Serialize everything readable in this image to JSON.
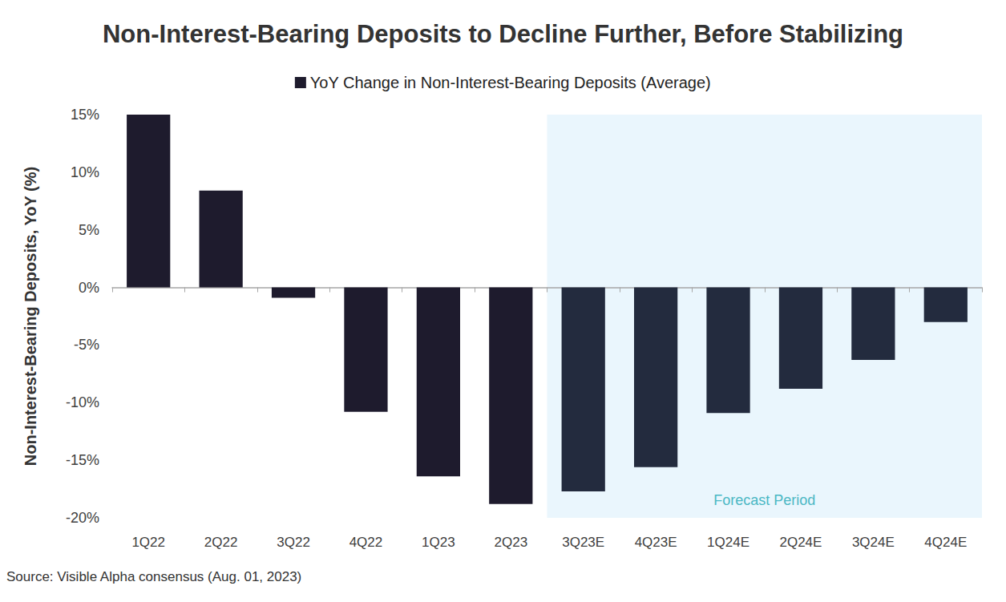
{
  "chart_data": {
    "type": "bar",
    "title": "Non-Interest-Bearing Deposits to Decline Further, Before Stabilizing",
    "y_label": "Non-Interest-Bearing Deposits, YoY (%)",
    "caption": "Source: Visible Alpha consensus (Aug. 01, 2023)",
    "categories": [
      "1Q22",
      "2Q22",
      "3Q22",
      "4Q22",
      "1Q23",
      "2Q23",
      "3Q23E",
      "4Q23E",
      "1Q24E",
      "2Q24E",
      "3Q24E",
      "4Q24E"
    ],
    "series": [
      {
        "name": "YoY Change in Non-Interest-Bearing Deposits (Average)",
        "values": [
          15.0,
          8.4,
          -0.9,
          -10.8,
          -16.4,
          -18.8,
          -17.7,
          -15.6,
          -10.9,
          -8.8,
          -6.3,
          -3.0
        ],
        "colors": [
          "#1e1b2d",
          "#1e1b2d",
          "#1e1b2d",
          "#1e1b2d",
          "#1e1b2d",
          "#1e1b2d",
          "#232b3e",
          "#232b3e",
          "#232b3e",
          "#232b3e",
          "#232b3e",
          "#232b3e"
        ]
      }
    ],
    "annotations": [
      {
        "text": "Forecast Period",
        "x_start": "3Q23E",
        "x_end": "4Q24E"
      }
    ],
    "ylim": [
      -20,
      15
    ],
    "yticks": [
      {
        "value": -20,
        "label": "-20%"
      },
      {
        "value": -15,
        "label": "-15%"
      },
      {
        "value": -10,
        "label": "-10%"
      },
      {
        "value": -5,
        "label": "-5%"
      },
      {
        "value": 0,
        "label": "0%"
      },
      {
        "value": 5,
        "label": "5%"
      },
      {
        "value": 10,
        "label": "10%"
      },
      {
        "value": 15,
        "label": "15%"
      }
    ],
    "grid": false,
    "legend": "top"
  }
}
